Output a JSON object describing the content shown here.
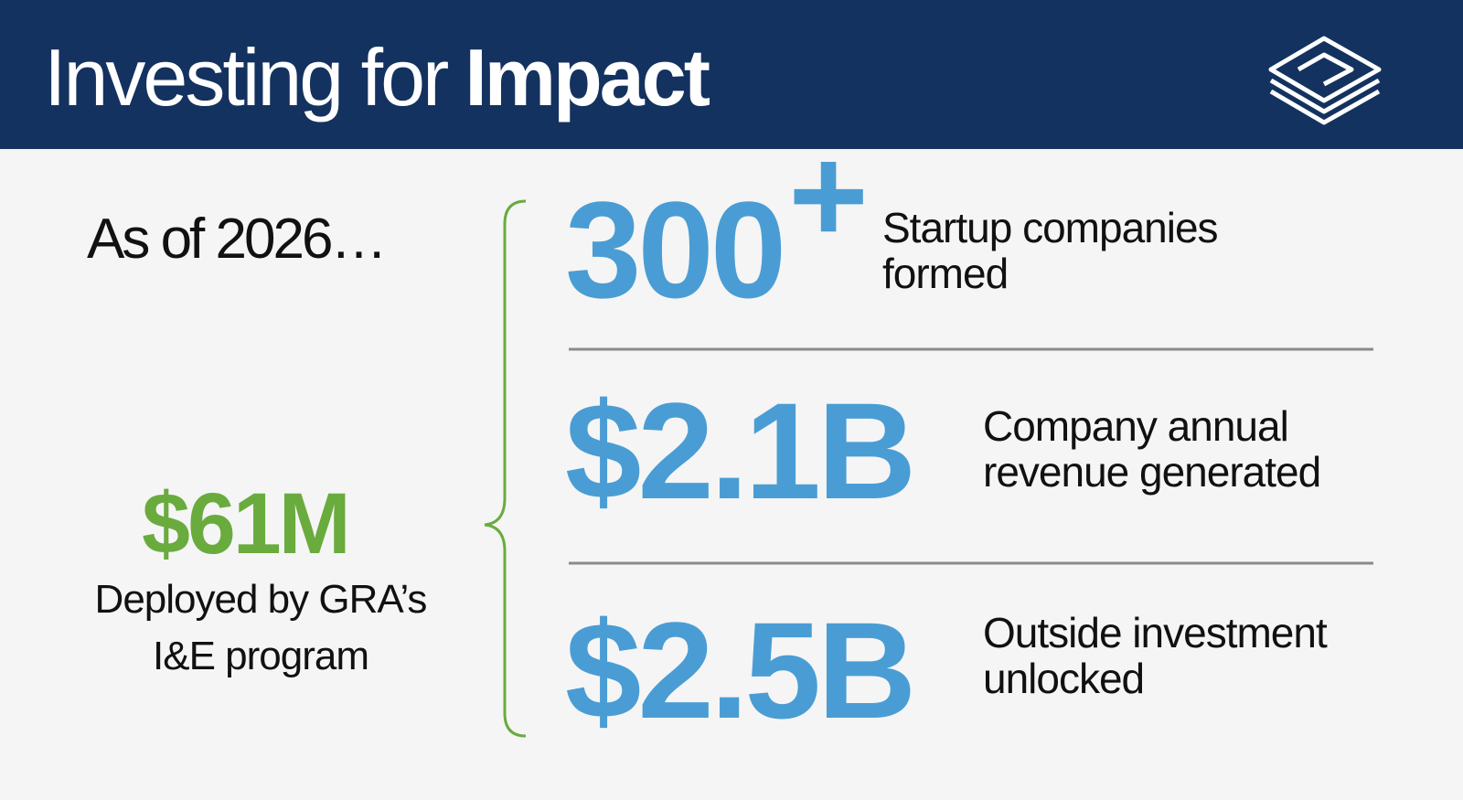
{
  "header": {
    "title_light": "Investing for",
    "title_bold": "Impact"
  },
  "intro": {
    "as_of": "As of 2026…",
    "amount": "$61M",
    "caption_lines": [
      "Deployed by GRA’s",
      "I&E program"
    ]
  },
  "stats": [
    {
      "value": "300",
      "suffix": "+",
      "lines": [
        "Startup companies",
        "formed"
      ]
    },
    {
      "value": "$2.1B",
      "lines": [
        "Company annual",
        "revenue generated"
      ]
    },
    {
      "value": "$2.5B",
      "lines": [
        "Outside investment",
        "unlocked"
      ]
    }
  ]
}
